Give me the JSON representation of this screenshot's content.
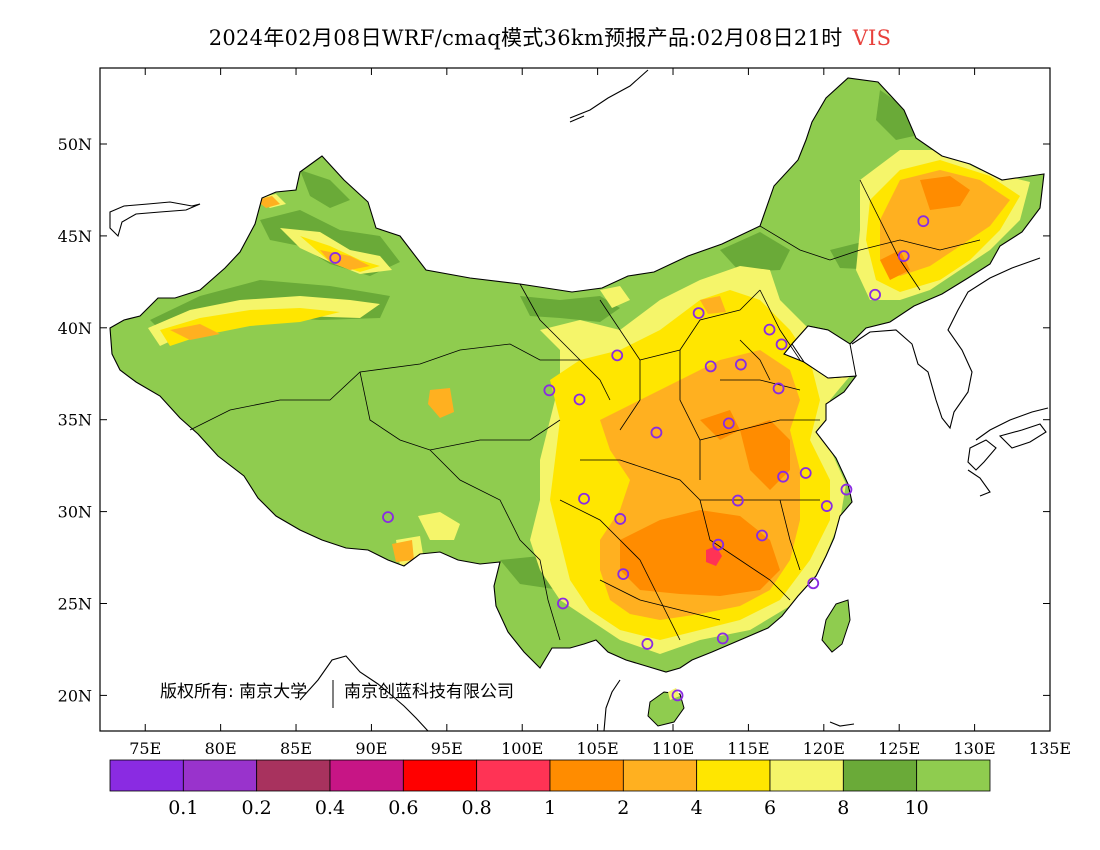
{
  "title": {
    "text": "2024年02月08日WRF/cmaq模式36km预报产品:02月08日21时",
    "variable": "VIS"
  },
  "axes": {
    "x_ticks": [
      "75E",
      "80E",
      "85E",
      "90E",
      "95E",
      "100E",
      "105E",
      "110E",
      "115E",
      "120E",
      "125E",
      "130E",
      "135E"
    ],
    "y_ticks": [
      "50N",
      "45N",
      "40N",
      "35N",
      "30N",
      "25N",
      "20N"
    ]
  },
  "copyright": {
    "owner": "版权所有: 南京大学",
    "partner": "南京创蓝科技有限公司"
  },
  "legend": {
    "labels": [
      "0.1",
      "0.2",
      "0.4",
      "0.6",
      "0.8",
      "1",
      "2",
      "4",
      "6",
      "8",
      "10"
    ],
    "colors": [
      "#8a2be2",
      "#9933cc",
      "#a8325e",
      "#c71585",
      "#ff0000",
      "#ff3355",
      "#ff8c00",
      "#ffb020",
      "#ffe600",
      "#f5f56a",
      "#6aaa38",
      "#8fcc4f"
    ]
  },
  "colors": {
    "land_base": "#8fcc4f",
    "land_dark": "#6aaa38",
    "light_yellow": "#f5f56a",
    "yellow": "#ffe600",
    "orange_light": "#ffb020",
    "orange": "#ff8c00",
    "red": "#ff3355",
    "station_marker": "#8a2be2"
  },
  "stations": [
    {
      "lon": 87.6,
      "lat": 43.8
    },
    {
      "lon": 91.1,
      "lat": 29.7
    },
    {
      "lon": 101.8,
      "lat": 36.6
    },
    {
      "lon": 103.8,
      "lat": 36.1
    },
    {
      "lon": 106.3,
      "lat": 38.5
    },
    {
      "lon": 111.7,
      "lat": 40.8
    },
    {
      "lon": 112.5,
      "lat": 37.9
    },
    {
      "lon": 114.5,
      "lat": 38.0
    },
    {
      "lon": 116.4,
      "lat": 39.9
    },
    {
      "lon": 117.2,
      "lat": 39.1
    },
    {
      "lon": 117.0,
      "lat": 36.7
    },
    {
      "lon": 113.7,
      "lat": 34.8
    },
    {
      "lon": 108.9,
      "lat": 34.3
    },
    {
      "lon": 104.1,
      "lat": 30.7
    },
    {
      "lon": 106.5,
      "lat": 29.6
    },
    {
      "lon": 114.3,
      "lat": 30.6
    },
    {
      "lon": 117.3,
      "lat": 31.9
    },
    {
      "lon": 118.8,
      "lat": 32.1
    },
    {
      "lon": 120.2,
      "lat": 30.3
    },
    {
      "lon": 121.5,
      "lat": 31.2
    },
    {
      "lon": 115.9,
      "lat": 28.7
    },
    {
      "lon": 113.0,
      "lat": 28.2
    },
    {
      "lon": 106.7,
      "lat": 26.6
    },
    {
      "lon": 102.7,
      "lat": 25.0
    },
    {
      "lon": 108.3,
      "lat": 22.8
    },
    {
      "lon": 113.3,
      "lat": 23.1
    },
    {
      "lon": 119.3,
      "lat": 26.1
    },
    {
      "lon": 110.3,
      "lat": 20.0
    },
    {
      "lon": 123.4,
      "lat": 41.8
    },
    {
      "lon": 125.3,
      "lat": 43.9
    },
    {
      "lon": 126.6,
      "lat": 45.8
    }
  ]
}
